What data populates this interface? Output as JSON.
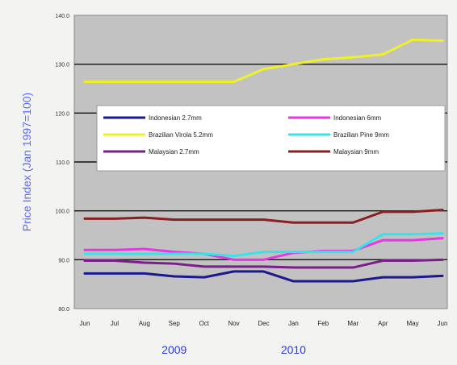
{
  "chart_data": {
    "type": "line",
    "ylabel": "Price Index (Jan 1997=100)",
    "xlabel": "",
    "categories": [
      "Jun",
      "Jul",
      "Aug",
      "Sep",
      "Oct",
      "Nov",
      "Dec",
      "Jan",
      "Feb",
      "Mar",
      "Apr",
      "May",
      "Jun"
    ],
    "year_labels": [
      {
        "text": "2009",
        "at_category": 3
      },
      {
        "text": "2010",
        "at_category": 7
      }
    ],
    "ylim": [
      80,
      140
    ],
    "yticks": [
      "80.0",
      "90.0",
      "100.0",
      "110.0",
      "120.0",
      "130.0",
      "140.0"
    ],
    "grid": "horizontal",
    "legend_placement": "center",
    "series": [
      {
        "name": "Indonesian 2.7mm",
        "color": "#1a1a8c",
        "values": [
          87.2,
          87.2,
          87.2,
          86.6,
          86.4,
          87.6,
          87.6,
          85.6,
          85.6,
          85.6,
          86.4,
          86.4,
          86.7
        ]
      },
      {
        "name": "Indonesian 6mm",
        "color": "#e23ae0",
        "values": [
          92.0,
          92.0,
          92.2,
          91.6,
          91.2,
          90.0,
          90.0,
          91.4,
          91.8,
          91.8,
          94.0,
          94.0,
          94.4
        ]
      },
      {
        "name": "Brazilian Virola 5.2mm",
        "color": "#f0f02a",
        "values": [
          126.4,
          126.4,
          126.4,
          126.4,
          126.4,
          126.4,
          129.0,
          130.0,
          131.0,
          131.4,
          132.0,
          135.0,
          134.8
        ]
      },
      {
        "name": "Brazilian Pine 9mm",
        "color": "#38e2ea",
        "values": [
          91.2,
          91.2,
          91.2,
          91.2,
          91.2,
          90.8,
          91.6,
          91.6,
          91.6,
          91.6,
          95.2,
          95.2,
          95.4
        ]
      },
      {
        "name": "Malaysian 2.7mm",
        "color": "#7a1f8a",
        "values": [
          89.8,
          89.8,
          89.4,
          89.2,
          88.6,
          88.6,
          88.6,
          88.4,
          88.4,
          88.4,
          89.8,
          89.8,
          90.0
        ]
      },
      {
        "name": "Malaysian 9mm",
        "color": "#8a1f22",
        "values": [
          98.4,
          98.4,
          98.6,
          98.2,
          98.2,
          98.2,
          98.2,
          97.6,
          97.6,
          97.6,
          99.8,
          99.8,
          100.2
        ]
      }
    ]
  }
}
